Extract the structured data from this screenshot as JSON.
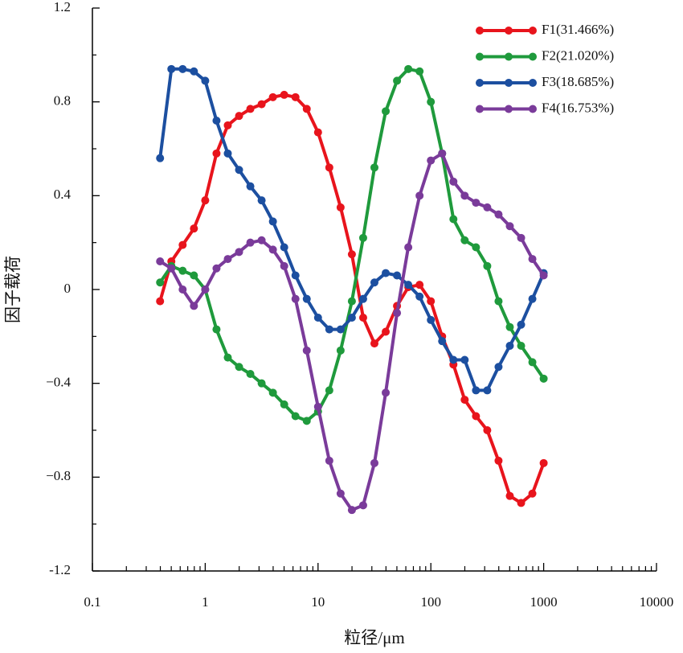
{
  "chart_data": {
    "type": "line",
    "xlabel": "粒径/μm",
    "ylabel": "因子载荷",
    "xscale": "log",
    "xlim": [
      0.1,
      10000
    ],
    "xticks": [
      0.1,
      1,
      10,
      100,
      1000,
      10000
    ],
    "ylim": [
      -1.2,
      1.2
    ],
    "yticks": [
      -1.2,
      {
        "value": -0.8,
        "label": "−0.8"
      },
      {
        "value": -0.4,
        "label": "−0.4"
      },
      0,
      0.4,
      0.8,
      1.2
    ],
    "legend": "upper right",
    "x": [
      0.398,
      0.501,
      0.631,
      0.794,
      1,
      1.259,
      1.585,
      1.995,
      2.512,
      3.162,
      3.981,
      5.012,
      6.31,
      7.943,
      10,
      12.59,
      15.85,
      19.95,
      25.12,
      31.62,
      39.81,
      50.12,
      63.1,
      79.43,
      100,
      125.9,
      158.5,
      199.5,
      251.2,
      316.2,
      398.1,
      501.2,
      631,
      794.3,
      1000
    ],
    "series": [
      {
        "name": "F1(31.466%)",
        "color": "#e8141c",
        "values": [
          -0.05,
          0.12,
          0.19,
          0.26,
          0.38,
          0.58,
          0.7,
          0.74,
          0.77,
          0.79,
          0.82,
          0.83,
          0.82,
          0.77,
          0.67,
          0.52,
          0.35,
          0.15,
          -0.12,
          -0.23,
          -0.18,
          -0.07,
          0.01,
          0.02,
          -0.05,
          -0.2,
          -0.32,
          -0.47,
          -0.54,
          -0.6,
          -0.73,
          -0.88,
          -0.91,
          -0.87,
          -0.74
        ]
      },
      {
        "name": "F2(21.020%)",
        "color": "#1f9a3c",
        "values": [
          0.03,
          0.1,
          0.08,
          0.06,
          0.0,
          -0.17,
          -0.29,
          -0.33,
          -0.36,
          -0.4,
          -0.44,
          -0.49,
          -0.54,
          -0.56,
          -0.52,
          -0.43,
          -0.26,
          -0.05,
          0.22,
          0.52,
          0.76,
          0.89,
          0.94,
          0.93,
          0.8,
          0.58,
          0.3,
          0.21,
          0.18,
          0.1,
          -0.05,
          -0.16,
          -0.24,
          -0.31,
          -0.38
        ]
      },
      {
        "name": "F3(18.685%)",
        "color": "#1c4fa0",
        "values": [
          0.56,
          0.94,
          0.94,
          0.93,
          0.89,
          0.72,
          0.58,
          0.51,
          0.44,
          0.38,
          0.29,
          0.18,
          0.06,
          -0.04,
          -0.12,
          -0.17,
          -0.17,
          -0.12,
          -0.04,
          0.03,
          0.07,
          0.06,
          0.02,
          -0.03,
          -0.13,
          -0.22,
          -0.3,
          -0.3,
          -0.43,
          -0.43,
          -0.33,
          -0.24,
          -0.15,
          -0.04,
          0.07
        ]
      },
      {
        "name": "F4(16.753%)",
        "color": "#7a3b9a",
        "values": [
          0.12,
          0.09,
          0.0,
          -0.07,
          0.0,
          0.09,
          0.13,
          0.16,
          0.2,
          0.21,
          0.17,
          0.1,
          -0.04,
          -0.26,
          -0.5,
          -0.73,
          -0.87,
          -0.94,
          -0.92,
          -0.74,
          -0.44,
          -0.1,
          0.18,
          0.4,
          0.55,
          0.58,
          0.46,
          0.4,
          0.37,
          0.35,
          0.32,
          0.27,
          0.22,
          0.13,
          0.06
        ]
      }
    ]
  }
}
